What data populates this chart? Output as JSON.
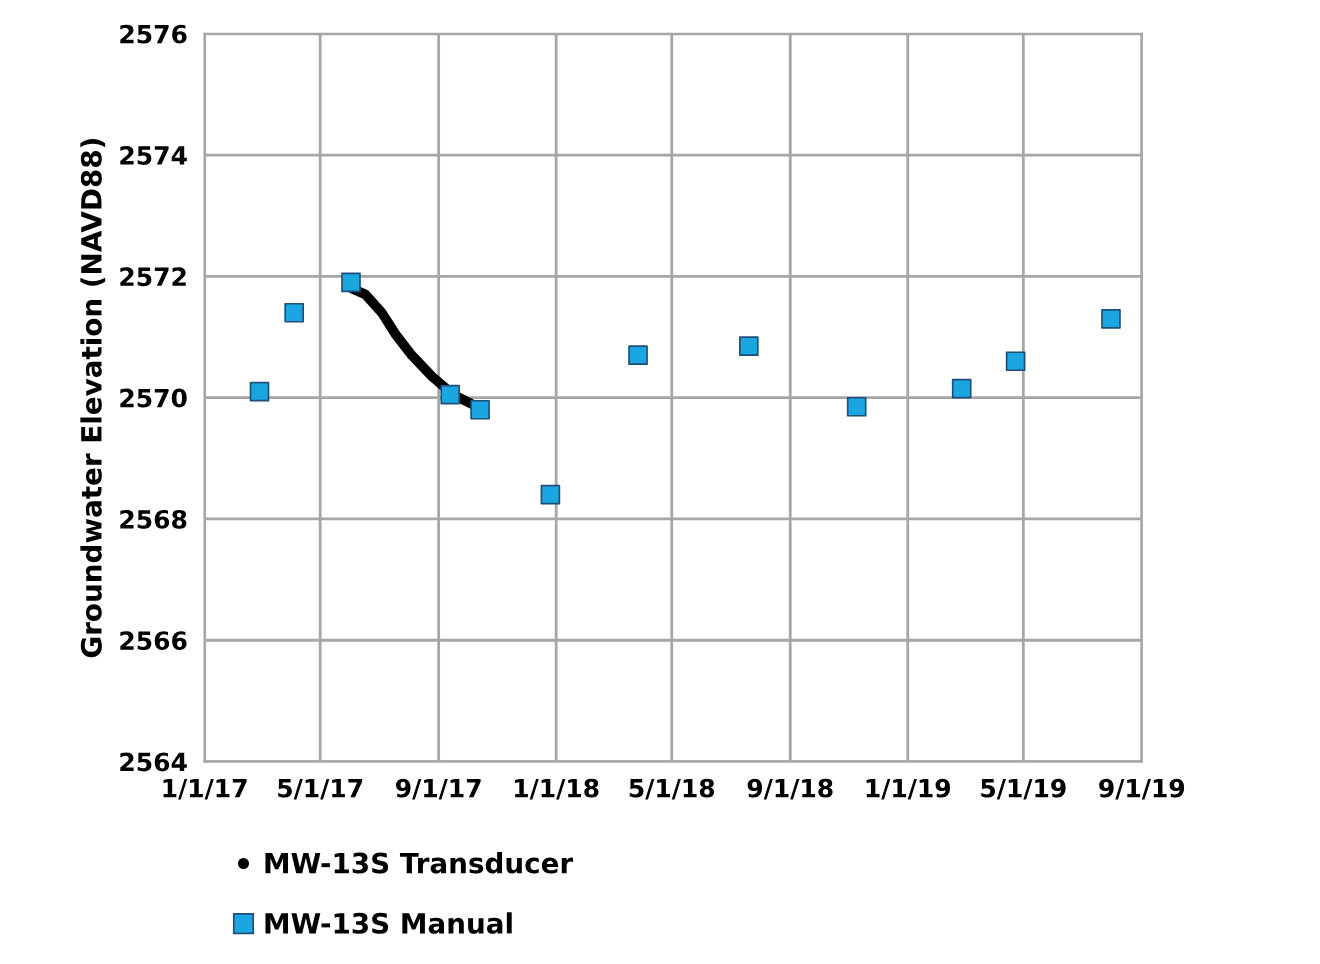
{
  "chart_data": {
    "type": "scatter",
    "ylabel": "Groundwater Elevation (NAVD88)",
    "series": [
      {
        "name": "MW-13S Transducer",
        "type": "line",
        "color": "#000000",
        "marker": "none",
        "x": [
          "2017-06-03",
          "2017-06-17",
          "2017-07-04",
          "2017-07-18",
          "2017-08-04",
          "2017-08-25",
          "2017-09-16",
          "2017-10-11"
        ],
        "values": [
          2571.8,
          2571.7,
          2571.4,
          2571.05,
          2570.7,
          2570.35,
          2570.05,
          2569.85
        ]
      },
      {
        "name": "MW-13S Manual",
        "color": "#1aa6e0",
        "marker": "square",
        "x": [
          "2017-02-27",
          "2017-04-04",
          "2017-06-02",
          "2017-09-13",
          "2017-10-14",
          "2017-12-26",
          "2018-03-27",
          "2018-07-20",
          "2018-11-09",
          "2019-02-26",
          "2019-04-23",
          "2019-07-31"
        ],
        "values": [
          2570.1,
          2571.4,
          2571.9,
          2570.05,
          2569.8,
          2568.4,
          2570.7,
          2570.85,
          2569.85,
          2570.15,
          2570.6,
          2571.3
        ]
      }
    ],
    "xlim": [
      "2017-01-01",
      "2019-09-01"
    ],
    "xticks": [
      {
        "value": "2017-01-01",
        "label": "1/1/17"
      },
      {
        "value": "2017-05-01",
        "label": "5/1/17"
      },
      {
        "value": "2017-09-01",
        "label": "9/1/17"
      },
      {
        "value": "2018-01-01",
        "label": "1/1/18"
      },
      {
        "value": "2018-05-01",
        "label": "5/1/18"
      },
      {
        "value": "2018-09-01",
        "label": "9/1/18"
      },
      {
        "value": "2019-01-01",
        "label": "1/1/19"
      },
      {
        "value": "2019-05-01",
        "label": "5/1/19"
      },
      {
        "value": "2019-09-01",
        "label": "9/1/19"
      }
    ],
    "ylim": [
      2564,
      2576
    ],
    "yticks": [
      2564,
      2566,
      2568,
      2570,
      2572,
      2574,
      2576
    ],
    "grid": true,
    "legend": "bottom left"
  }
}
